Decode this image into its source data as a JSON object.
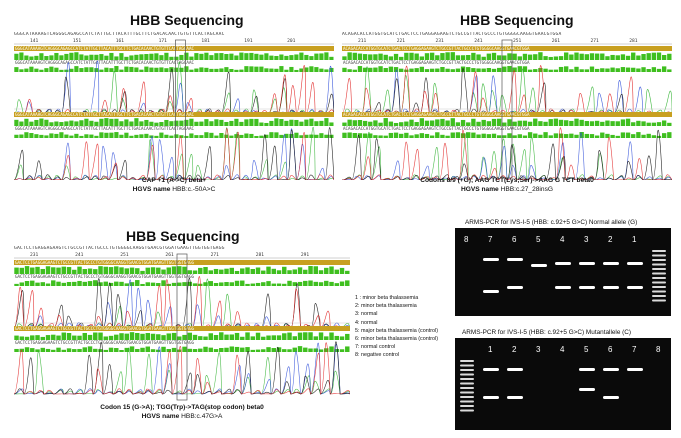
{
  "panel1": {
    "title": "HBB Sequencing",
    "sequence": "GGGCATAAAAGTCAGGGCAGAGCCATCTATTGCTTACATTTGCTTCTGACACAACTGTGTTCACTAGCAAC",
    "positions": [
      "141",
      "151",
      "161",
      "171",
      "181",
      "191",
      "201"
    ],
    "caption_line1": "CAP +1 (A->C) beta+",
    "caption_hgvs_label": "HGVS name",
    "caption_hgvs_value": "HBB:c.-50A>C"
  },
  "panel2": {
    "title": "HBB Sequencing",
    "sequence": "ACAGACACCATGGTGCATCTGACTCCTGAGGAGAAGTCTGCCGTTACTGCCCTGTGGGGCAAGGTGAACGTGGA",
    "positions": [
      "211",
      "221",
      "231",
      "241",
      "251",
      "261",
      "271",
      "281"
    ],
    "caption_line1": "Codons 8/9 (+G); AAG TCT(Lys;Ser)->AAG G TCT beta0",
    "caption_hgvs_label": "HGVS name",
    "caption_hgvs_value": "HBB:c.27_28insG"
  },
  "panel3": {
    "title": "HBB Sequencing",
    "sequence": "GACTCCTGAGGAGAAGTCTGCCGTTACTGCCCTGTGGGGCAAGGTGAACGTGGATGAAGTTGGTGGTGAGG",
    "positions": [
      "231",
      "241",
      "251",
      "261",
      "271",
      "281",
      "291"
    ],
    "caption_line1": "Codon 15 (G->A); TGG(Trp)->TAG(stop codon) beta0",
    "caption_hgvs_label": "HGVS name",
    "caption_hgvs_value": "HBB:c.47G>A"
  },
  "legend": [
    "1 : minor beta thalassemia",
    "2: minor beta thalassemia",
    "3: normal",
    "4: normal",
    "5: major beta thalassemia (control)",
    "6: minor beta thalassemia (control)",
    "7: normal control",
    "8: negative control"
  ],
  "gel_top": {
    "caption": "ARMS-PCR for IVS-I-5 (HBB: c.92+5 G>C) Normal allele (G)",
    "lane_labels": [
      "8",
      "7",
      "6",
      "5",
      "4",
      "3",
      "2",
      "1"
    ]
  },
  "gel_bottom": {
    "caption": "ARMS-PCR for IVS-I-5 (HBB: c.92+5 G>C) Mutantallele (C)",
    "lane_labels": [
      "1",
      "2",
      "3",
      "4",
      "5",
      "6",
      "7",
      "8"
    ]
  },
  "colors": {
    "sequence_bar": "#c8a020",
    "quality_bar": "#3fbf1f",
    "trace_a": "#2bb02b",
    "trace_c": "#2a4ad8",
    "trace_g": "#111111",
    "trace_t": "#e02020",
    "gel_background": "#0a0a0a",
    "band": "#ffffff"
  }
}
